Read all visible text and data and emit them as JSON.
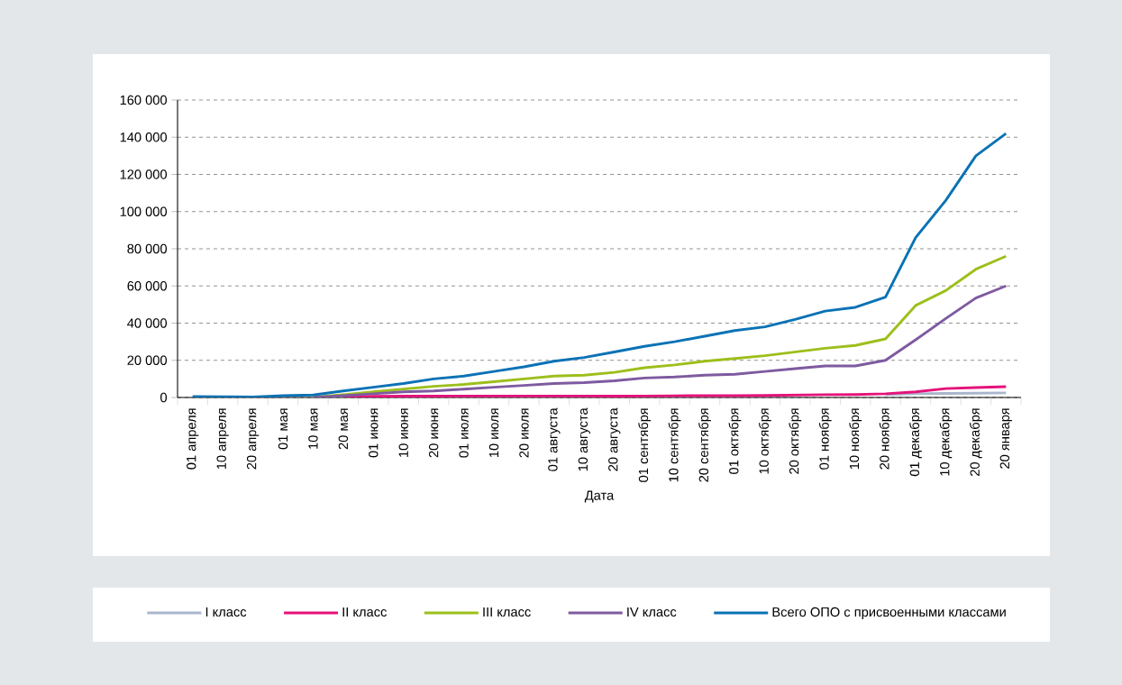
{
  "chart_data": {
    "type": "line",
    "xlabel": "Дата",
    "categories": [
      "01 апреля",
      "10 апреля",
      "20 апреля",
      "01 мая",
      "10 мая",
      "20 мая",
      "01 июня",
      "10 июня",
      "20 июня",
      "01 июля",
      "10 июля",
      "20 июля",
      "01 августа",
      "10 августа",
      "20 августа",
      "01 сентября",
      "10 сентября",
      "20 сентября",
      "01 октября",
      "10 октября",
      "20 октября",
      "01 ноября",
      "10 ноября",
      "20 ноября",
      "01 декабря",
      "10 декабря",
      "20 декабря",
      "20 января"
    ],
    "series": [
      {
        "name": "I класс",
        "color": "#a9b6cc",
        "values": [
          null,
          null,
          null,
          null,
          null,
          null,
          null,
          null,
          null,
          null,
          null,
          null,
          null,
          null,
          null,
          null,
          null,
          null,
          null,
          null,
          null,
          null,
          null,
          1500,
          2000,
          2200,
          2300,
          2500
        ]
      },
      {
        "name": "II класс",
        "color": "#e5127a",
        "values": [
          null,
          null,
          null,
          null,
          null,
          500,
          600,
          700,
          700,
          800,
          800,
          800,
          800,
          800,
          700,
          800,
          900,
          1000,
          1000,
          1100,
          1300,
          1500,
          1600,
          2000,
          3000,
          4800,
          5300,
          5800
        ]
      },
      {
        "name": "III класс",
        "color": "#9cbf1b",
        "values": [
          null,
          null,
          null,
          null,
          200,
          1500,
          3000,
          4500,
          6000,
          7000,
          8500,
          10000,
          11500,
          12000,
          13500,
          16000,
          17500,
          19500,
          21000,
          22500,
          24500,
          26500,
          28000,
          31500,
          49500,
          57500,
          69000,
          76000
        ]
      },
      {
        "name": "IV класс",
        "color": "#7e5aa0",
        "values": [
          null,
          null,
          null,
          null,
          0,
          1000,
          2000,
          3000,
          3500,
          4500,
          5500,
          6500,
          7500,
          8000,
          9000,
          10500,
          11000,
          12000,
          12500,
          14000,
          15500,
          17000,
          17000,
          20000,
          31000,
          42500,
          53500,
          60000
        ]
      },
      {
        "name": "Всего ОПО с присвоенными классами",
        "color": "#0b72b5",
        "values": [
          500,
          400,
          300,
          1000,
          1300,
          3500,
          5500,
          7500,
          10000,
          11500,
          14000,
          16500,
          19500,
          21500,
          24500,
          27500,
          30000,
          33000,
          36000,
          38000,
          42000,
          46500,
          48500,
          54000,
          86000,
          106000,
          130000,
          142000
        ]
      }
    ],
    "ylim": [
      0,
      160000
    ],
    "yticks": [
      {
        "value": 0,
        "label": "0"
      },
      {
        "value": 20000,
        "label": "20 000"
      },
      {
        "value": 40000,
        "label": "40 000"
      },
      {
        "value": 60000,
        "label": "60 000"
      },
      {
        "value": 80000,
        "label": "80 000"
      },
      {
        "value": 100000,
        "label": "100 000"
      },
      {
        "value": 120000,
        "label": "120 000"
      },
      {
        "value": 140000,
        "label": "140 000"
      },
      {
        "value": 160000,
        "label": "160 000"
      }
    ],
    "grid": "y",
    "legend": "bottom",
    "marker": "none",
    "line_style": "solid"
  }
}
